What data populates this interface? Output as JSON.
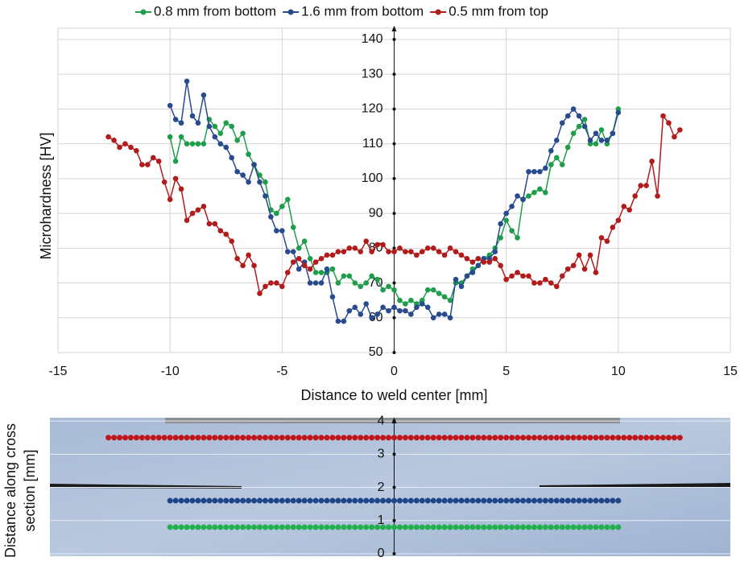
{
  "chart_data": [
    {
      "type": "line",
      "xlabel": "Distance to weld center [mm]",
      "ylabel": "Microhardness [HV]",
      "xlim": [
        -15,
        15
      ],
      "ylim": [
        50,
        140
      ],
      "xticks": [
        -15,
        -10,
        -5,
        0,
        5,
        10,
        15
      ],
      "yticks": [
        50,
        60,
        70,
        80,
        90,
        100,
        110,
        120,
        130,
        140
      ],
      "grid": true,
      "legend": "top",
      "series": [
        {
          "name": "0.8 mm from bottom",
          "color": "#1e9e4a",
          "x": [
            -10,
            -9.75,
            -9.5,
            -9.25,
            -9,
            -8.75,
            -8.5,
            -8.25,
            -8,
            -7.75,
            -7.5,
            -7.25,
            -7,
            -6.75,
            -6.5,
            -6.25,
            -6,
            -5.75,
            -5.5,
            -5.25,
            -5,
            -4.75,
            -4.5,
            -4.25,
            -4,
            -3.75,
            -3.5,
            -3.25,
            -3,
            -2.75,
            -2.5,
            -2.25,
            -2,
            -1.75,
            -1.5,
            -1.25,
            -1,
            -0.75,
            -0.5,
            -0.25,
            0,
            0.25,
            0.5,
            0.75,
            1,
            1.25,
            1.5,
            1.75,
            2,
            2.25,
            2.5,
            2.75,
            3,
            3.25,
            3.5,
            3.75,
            4,
            4.25,
            4.5,
            4.75,
            5,
            5.25,
            5.5,
            5.75,
            6,
            6.25,
            6.5,
            6.75,
            7,
            7.25,
            7.5,
            7.75,
            8,
            8.25,
            8.5,
            8.75,
            9,
            9.25,
            9.5,
            9.75,
            10
          ],
          "values": [
            112,
            105,
            112,
            110,
            110,
            110,
            110,
            117,
            115,
            113,
            116,
            115,
            111,
            113,
            107,
            104,
            101,
            99,
            91,
            90,
            92,
            94,
            86,
            80,
            82,
            77,
            73,
            73,
            73,
            74,
            70,
            72,
            72,
            70,
            69,
            70,
            72,
            71,
            68,
            69,
            68,
            65,
            64,
            65,
            64,
            65,
            68,
            68,
            67,
            66,
            65,
            70,
            70,
            72,
            74,
            75,
            77,
            78,
            80,
            83,
            88,
            85,
            83,
            94,
            95,
            96,
            97,
            96,
            104,
            106,
            104,
            109,
            113,
            115,
            117,
            110,
            110,
            114,
            110,
            113,
            120
          ]
        },
        {
          "name": "1.6 mm from bottom",
          "color": "#284a8e",
          "x": [
            -10,
            -9.75,
            -9.5,
            -9.25,
            -9,
            -8.75,
            -8.5,
            -8.25,
            -8,
            -7.75,
            -7.5,
            -7.25,
            -7,
            -6.75,
            -6.5,
            -6.25,
            -6,
            -5.75,
            -5.5,
            -5.25,
            -5,
            -4.75,
            -4.5,
            -4.25,
            -4,
            -3.75,
            -3.5,
            -3.25,
            -3,
            -2.75,
            -2.5,
            -2.25,
            -2,
            -1.75,
            -1.5,
            -1.25,
            -1,
            -0.75,
            -0.5,
            -0.25,
            0,
            0.25,
            0.5,
            0.75,
            1,
            1.25,
            1.5,
            1.75,
            2,
            2.25,
            2.5,
            2.75,
            3,
            3.25,
            3.5,
            3.75,
            4,
            4.25,
            4.5,
            4.75,
            5,
            5.25,
            5.5,
            5.75,
            6,
            6.25,
            6.5,
            6.75,
            7,
            7.25,
            7.5,
            7.75,
            8,
            8.25,
            8.5,
            8.75,
            9,
            9.25,
            9.5,
            9.75,
            10
          ],
          "values": [
            121,
            117,
            116,
            128,
            118,
            116,
            124,
            115,
            112,
            110,
            109,
            106,
            102,
            101,
            99,
            104,
            99,
            95,
            89,
            85,
            85,
            79,
            79,
            74,
            76,
            70,
            70,
            70,
            74,
            66,
            59,
            59,
            62,
            63,
            61,
            64,
            60,
            61,
            63,
            62,
            63,
            62,
            62,
            61,
            63,
            64,
            63,
            60,
            61,
            61,
            60,
            71,
            69,
            72,
            73,
            75,
            77,
            77,
            79,
            87,
            90,
            92,
            95,
            94,
            102,
            102,
            102,
            103,
            108,
            111,
            116,
            118,
            120,
            118,
            115,
            111,
            113,
            111,
            111,
            113,
            119
          ]
        },
        {
          "name": "0.5 mm from top",
          "color": "#b21b1b",
          "x": [
            -12.75,
            -12.5,
            -12.25,
            -12,
            -11.75,
            -11.5,
            -11.25,
            -11,
            -10.75,
            -10.5,
            -10.25,
            -10,
            -9.75,
            -9.5,
            -9.25,
            -9,
            -8.75,
            -8.5,
            -8.25,
            -8,
            -7.75,
            -7.5,
            -7.25,
            -7,
            -6.75,
            -6.5,
            -6.25,
            -6,
            -5.75,
            -5.5,
            -5.25,
            -5,
            -4.75,
            -4.5,
            -4.25,
            -4,
            -3.75,
            -3.5,
            -3.25,
            -3,
            -2.75,
            -2.5,
            -2.25,
            -2,
            -1.75,
            -1.5,
            -1.25,
            -1,
            -0.75,
            -0.5,
            -0.25,
            0,
            0.25,
            0.5,
            0.75,
            1,
            1.25,
            1.5,
            1.75,
            2,
            2.25,
            2.5,
            2.75,
            3,
            3.25,
            3.5,
            3.75,
            4,
            4.25,
            4.5,
            4.75,
            5,
            5.25,
            5.5,
            5.75,
            6,
            6.25,
            6.5,
            6.75,
            7,
            7.25,
            7.5,
            7.75,
            8,
            8.25,
            8.5,
            8.75,
            9,
            9.25,
            9.5,
            9.75,
            10,
            10.25,
            10.5,
            10.75,
            11,
            11.25,
            11.5,
            11.75,
            12,
            12.25,
            12.5,
            12.75
          ],
          "values": [
            112,
            111,
            109,
            110,
            109,
            108,
            104,
            104,
            106,
            105,
            99,
            94,
            100,
            97,
            88,
            90,
            91,
            92,
            87,
            87,
            85,
            84,
            82,
            77,
            75,
            78,
            75,
            67,
            69,
            70,
            70,
            69,
            73,
            76,
            77,
            75,
            74,
            76,
            77,
            78,
            78,
            79,
            79,
            80,
            80,
            79,
            82,
            79,
            81,
            81,
            79,
            79,
            80,
            79,
            79,
            78,
            79,
            80,
            80,
            79,
            78,
            80,
            79,
            78,
            77,
            76,
            77,
            76,
            76,
            77,
            75,
            71,
            72,
            73,
            72,
            72,
            70,
            70,
            71,
            70,
            69,
            72,
            74,
            75,
            78,
            74,
            78,
            73,
            83,
            82,
            86,
            88,
            92,
            91,
            95,
            98,
            98,
            105,
            95,
            118,
            116,
            112,
            114
          ]
        }
      ]
    },
    {
      "type": "scatter",
      "ylabel": [
        "Distance along cross",
        "section [mm]"
      ],
      "xlim": [
        -15,
        15
      ],
      "ylim": [
        0,
        4.1
      ],
      "yticks": [
        0,
        1,
        2,
        3,
        4
      ],
      "series": [
        {
          "color": "#c0161b",
          "y": 3.5,
          "x": [
            -12.75,
            -12.5,
            -12.25,
            -12,
            -11.75,
            -11.5,
            -11.25,
            -11,
            -10.75,
            -10.5,
            -10.25,
            -10,
            -9.75,
            -9.5,
            -9.25,
            -9,
            -8.75,
            -8.5,
            -8.25,
            -8,
            -7.75,
            -7.5,
            -7.25,
            -7,
            -6.75,
            -6.5,
            -6.25,
            -6,
            -5.75,
            -5.5,
            -5.25,
            -5,
            -4.75,
            -4.5,
            -4.25,
            -4,
            -3.75,
            -3.5,
            -3.25,
            -3,
            -2.75,
            -2.5,
            -2.25,
            -2,
            -1.75,
            -1.5,
            -1.25,
            -1,
            -0.75,
            -0.5,
            -0.25,
            0,
            0.25,
            0.5,
            0.75,
            1,
            1.25,
            1.5,
            1.75,
            2,
            2.25,
            2.5,
            2.75,
            3,
            3.25,
            3.5,
            3.75,
            4,
            4.25,
            4.5,
            4.75,
            5,
            5.25,
            5.5,
            5.75,
            6,
            6.25,
            6.5,
            6.75,
            7,
            7.25,
            7.5,
            7.75,
            8,
            8.25,
            8.5,
            8.75,
            9,
            9.25,
            9.5,
            9.75,
            10,
            10.25,
            10.5,
            10.75,
            11,
            11.25,
            11.5,
            11.75,
            12,
            12.25,
            12.5,
            12.75
          ]
        },
        {
          "color": "#1f4488",
          "y": 1.6,
          "x": [
            -10,
            -9.75,
            -9.5,
            -9.25,
            -9,
            -8.75,
            -8.5,
            -8.25,
            -8,
            -7.75,
            -7.5,
            -7.25,
            -7,
            -6.75,
            -6.5,
            -6.25,
            -6,
            -5.75,
            -5.5,
            -5.25,
            -5,
            -4.75,
            -4.5,
            -4.25,
            -4,
            -3.75,
            -3.5,
            -3.25,
            -3,
            -2.75,
            -2.5,
            -2.25,
            -2,
            -1.75,
            -1.5,
            -1.25,
            -1,
            -0.75,
            -0.5,
            -0.25,
            0,
            0.25,
            0.5,
            0.75,
            1,
            1.25,
            1.5,
            1.75,
            2,
            2.25,
            2.5,
            2.75,
            3,
            3.25,
            3.5,
            3.75,
            4,
            4.25,
            4.5,
            4.75,
            5,
            5.25,
            5.5,
            5.75,
            6,
            6.25,
            6.5,
            6.75,
            7,
            7.25,
            7.5,
            7.75,
            8,
            8.25,
            8.5,
            8.75,
            9,
            9.25,
            9.5,
            9.75,
            10
          ]
        },
        {
          "color": "#22b04e",
          "y": 0.8,
          "x": [
            -10,
            -9.75,
            -9.5,
            -9.25,
            -9,
            -8.75,
            -8.5,
            -8.25,
            -8,
            -7.75,
            -7.5,
            -7.25,
            -7,
            -6.75,
            -6.5,
            -6.25,
            -6,
            -5.75,
            -5.5,
            -5.25,
            -5,
            -4.75,
            -4.5,
            -4.25,
            -4,
            -3.75,
            -3.5,
            -3.25,
            -3,
            -2.75,
            -2.5,
            -2.25,
            -2,
            -1.75,
            -1.5,
            -1.25,
            -1,
            -0.75,
            -0.5,
            -0.25,
            0,
            0.25,
            0.5,
            0.75,
            1,
            1.25,
            1.5,
            1.75,
            2,
            2.25,
            2.5,
            2.75,
            3,
            3.25,
            3.5,
            3.75,
            4,
            4.25,
            4.5,
            4.75,
            5,
            5.25,
            5.5,
            5.75,
            6,
            6.25,
            6.5,
            6.75,
            7,
            7.25,
            7.5,
            7.75,
            8,
            8.25,
            8.5,
            8.75,
            9,
            9.25,
            9.5,
            9.75,
            10
          ]
        }
      ]
    }
  ]
}
